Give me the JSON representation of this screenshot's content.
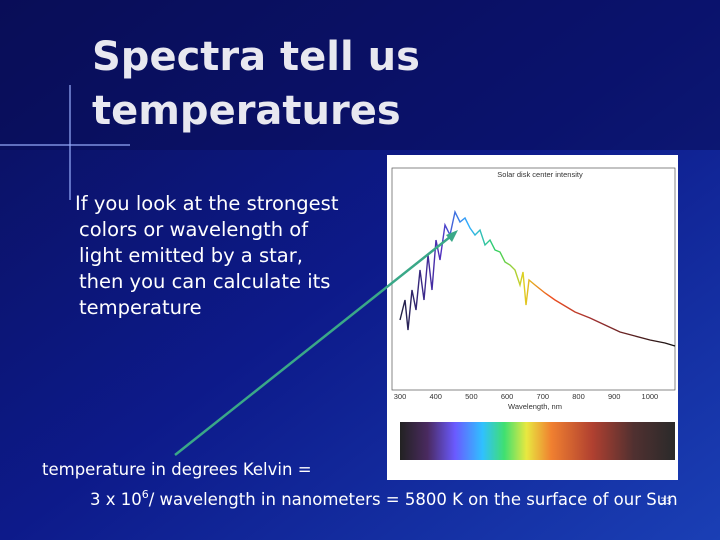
{
  "slide": {
    "title": [
      "Spectra tell us",
      "temperatures"
    ],
    "body": [
      "If you look at the strongest",
      "colors or wavelength of",
      "light emitted by a star,",
      "then you can calculate its",
      "temperature"
    ],
    "formula": {
      "line1": "temperature in degrees Kelvin =",
      "line2_start": "3 x 10",
      "superscript": "6",
      "line2_end": "/ wavelength in nanometers = 5800 K on the surface of our Sun"
    },
    "page_number": "33"
  },
  "figure": {
    "title": "Solar disk center intensity",
    "x_tick_labels": [
      "300",
      "400",
      "500",
      "600",
      "700",
      "800",
      "900",
      "1000"
    ],
    "x_label": "Wavelength, nm"
  }
}
